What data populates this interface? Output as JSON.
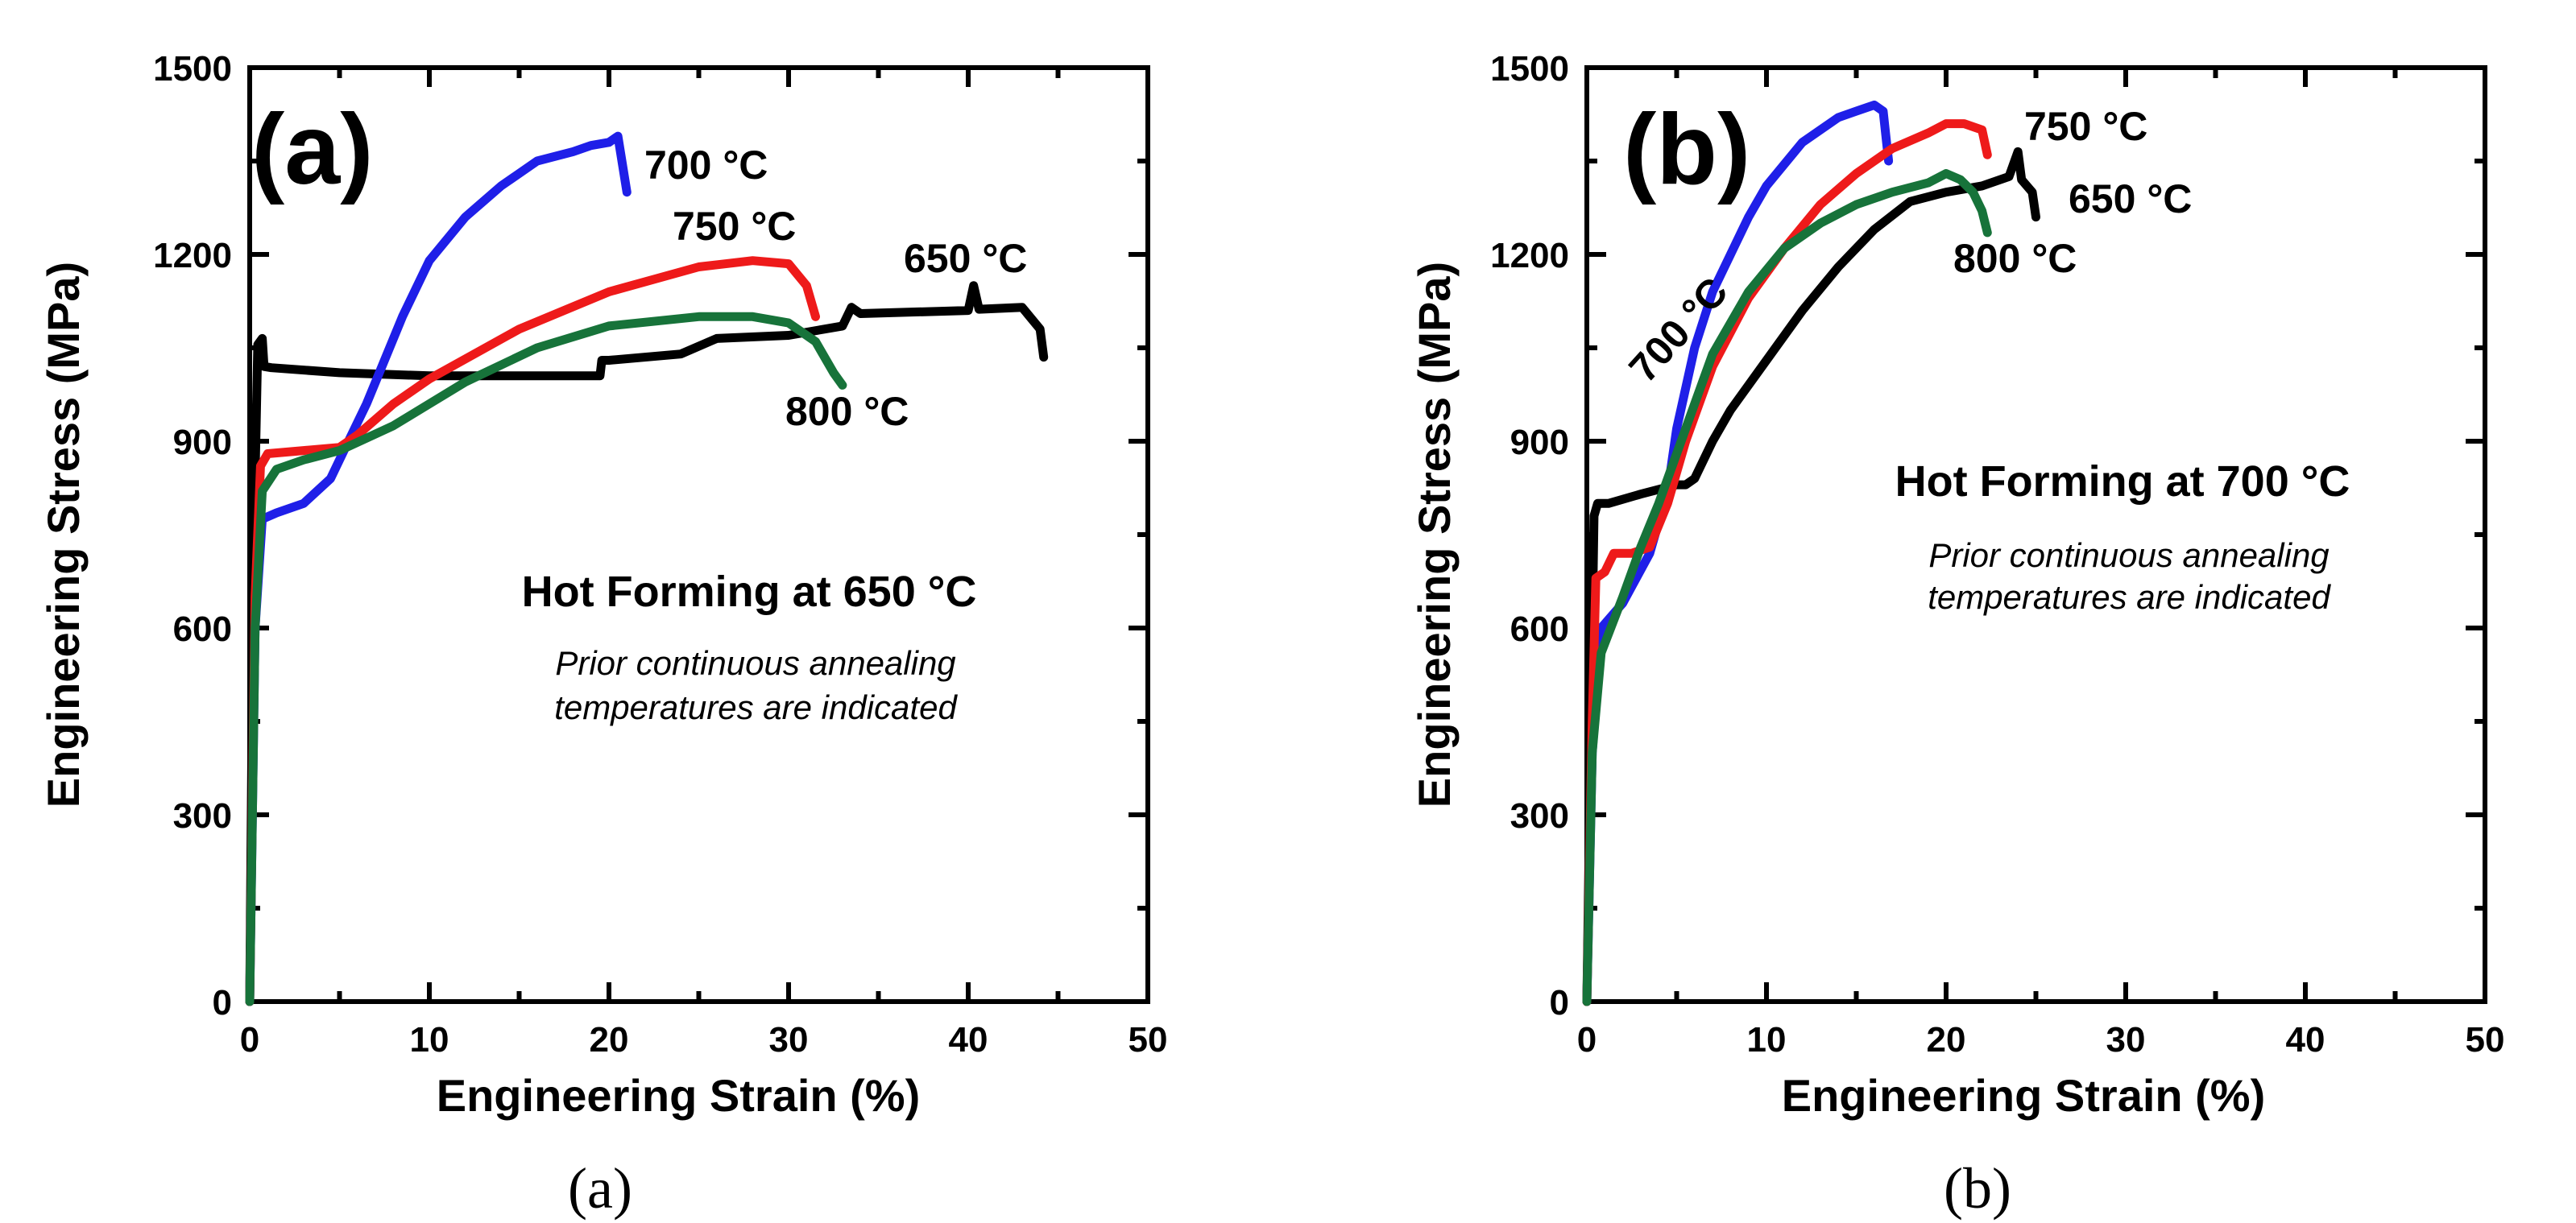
{
  "chart_data": [
    {
      "type": "line",
      "panel_label": "(a)",
      "caption": "(a)",
      "xlabel": "Engineering Strain (%)",
      "ylabel": "Engineering Stress (MPa)",
      "xlim": [
        0,
        50
      ],
      "ylim": [
        0,
        1500
      ],
      "xticks": [
        0,
        10,
        20,
        30,
        40,
        50
      ],
      "yticks": [
        0,
        300,
        600,
        900,
        1200,
        1500
      ],
      "annotation_title": "Hot Forming at 650 °C",
      "annotation_lines": [
        "Prior continuous annealing",
        "temperatures are indicated"
      ],
      "series": [
        {
          "name": "650 °C",
          "label": "650 °C",
          "color": "#000000",
          "x": [
            0,
            0.2,
            0.45,
            0.7,
            0.8,
            1.2,
            5,
            10,
            19.5,
            19.6,
            20,
            24,
            26,
            30,
            33,
            33.5,
            34,
            40,
            40.3,
            40.6,
            43,
            44,
            44.2
          ],
          "y": [
            0,
            700,
            1055,
            1065,
            1020,
            1018,
            1010,
            1005,
            1005,
            1030,
            1030,
            1040,
            1065,
            1070,
            1085,
            1115,
            1105,
            1110,
            1150,
            1112,
            1115,
            1080,
            1035
          ]
        },
        {
          "name": "700 °C",
          "label": "700 °C",
          "color": "#1f1fe8",
          "x": [
            0,
            0.3,
            0.7,
            1.5,
            3,
            4.5,
            5.5,
            6.5,
            7.5,
            8.5,
            10,
            12,
            14,
            16,
            18,
            19,
            20,
            20.5,
            21
          ],
          "y": [
            0,
            600,
            775,
            785,
            800,
            840,
            900,
            960,
            1030,
            1100,
            1190,
            1260,
            1310,
            1350,
            1365,
            1375,
            1380,
            1390,
            1300
          ]
        },
        {
          "name": "750 °C",
          "label": "750 °C",
          "color": "#ee1a1a",
          "x": [
            0,
            0.3,
            0.6,
            1,
            3,
            5,
            6,
            8,
            10,
            15,
            20,
            25,
            28,
            30,
            31,
            31.5
          ],
          "y": [
            0,
            650,
            860,
            880,
            885,
            890,
            910,
            960,
            1000,
            1080,
            1140,
            1180,
            1190,
            1185,
            1150,
            1100
          ]
        },
        {
          "name": "800 °C",
          "label": "800 °C",
          "color": "#17733a",
          "x": [
            0,
            0.3,
            0.7,
            1.5,
            3,
            5,
            8,
            12,
            16,
            20,
            25,
            28,
            30,
            31.5,
            32.5,
            33
          ],
          "y": [
            0,
            600,
            820,
            855,
            870,
            885,
            925,
            995,
            1050,
            1085,
            1100,
            1100,
            1090,
            1060,
            1010,
            990
          ]
        }
      ]
    },
    {
      "type": "line",
      "panel_label": "(b)",
      "caption": "(b)",
      "xlabel": "Engineering Strain (%)",
      "ylabel": "Engineering Stress (MPa)",
      "xlim": [
        0,
        50
      ],
      "ylim": [
        0,
        1500
      ],
      "xticks": [
        0,
        10,
        20,
        30,
        40,
        50
      ],
      "yticks": [
        0,
        300,
        600,
        900,
        1200,
        1500
      ],
      "annotation_title": "Hot Forming at 700 °C",
      "annotation_lines": [
        "Prior continuous annealing",
        "temperatures are indicated"
      ],
      "series": [
        {
          "name": "650 °C",
          "label": "650 °C",
          "color": "#000000",
          "x": [
            0,
            0.2,
            0.4,
            0.6,
            1.2,
            3,
            5,
            5.5,
            6,
            7,
            8,
            10,
            12,
            14,
            16,
            18,
            20,
            22,
            23.5,
            24,
            24.2,
            24.8,
            25
          ],
          "y": [
            0,
            400,
            780,
            800,
            800,
            815,
            830,
            830,
            840,
            900,
            950,
            1030,
            1110,
            1180,
            1240,
            1285,
            1300,
            1310,
            1325,
            1365,
            1320,
            1300,
            1260
          ]
        },
        {
          "name": "700 °C",
          "label": "700 °C",
          "color": "#1f1fe8",
          "x": [
            0,
            0.3,
            0.8,
            2,
            3.5,
            4.5,
            5,
            6,
            7,
            8,
            9,
            10,
            12,
            14,
            15,
            16,
            16.5,
            16.8
          ],
          "y": [
            0,
            400,
            600,
            640,
            720,
            820,
            920,
            1050,
            1140,
            1200,
            1260,
            1310,
            1380,
            1420,
            1430,
            1440,
            1430,
            1350
          ]
        },
        {
          "name": "750 °C",
          "label": "750 °C",
          "color": "#ee1a1a",
          "x": [
            0,
            0.3,
            0.5,
            1,
            1.5,
            2.5,
            3.5,
            4.5,
            5.5,
            7,
            9,
            11,
            13,
            15,
            17,
            19,
            20,
            21,
            22,
            22.3
          ],
          "y": [
            0,
            450,
            680,
            690,
            720,
            720,
            730,
            800,
            900,
            1020,
            1130,
            1210,
            1280,
            1330,
            1370,
            1395,
            1410,
            1410,
            1400,
            1360
          ]
        },
        {
          "name": "800 °C",
          "label": "800 °C",
          "color": "#17733a",
          "x": [
            0,
            0.3,
            0.8,
            2,
            3,
            4,
            5,
            6,
            7,
            9,
            11,
            13,
            15,
            17,
            19,
            20,
            20.8,
            21.5,
            22,
            22.3
          ],
          "y": [
            0,
            400,
            560,
            650,
            730,
            800,
            880,
            960,
            1040,
            1140,
            1210,
            1250,
            1280,
            1300,
            1315,
            1330,
            1320,
            1300,
            1270,
            1235
          ]
        }
      ]
    }
  ]
}
